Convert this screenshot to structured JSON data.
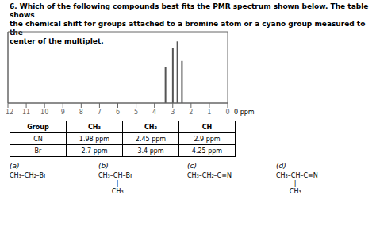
{
  "chart_data": {
    "type": "bar",
    "title": "6. Which of the following compounds best fits the PMR spectrum shown below. The table shows\nthe chemical shift for groups attached to a bromine atom or a cyano group measured to the\ncenter of the multiplet.",
    "x": [
      3.4,
      3.0,
      2.75,
      2.5
    ],
    "values": [
      0.55,
      0.85,
      0.95,
      0.65
    ],
    "color": "#555555",
    "xlim": [
      12,
      0
    ],
    "xticks": [
      0,
      1,
      2,
      3,
      4,
      5,
      6,
      7,
      8,
      9,
      10,
      11,
      12
    ],
    "ylim": [
      0,
      1.1
    ],
    "grid": false,
    "tick_labels": "x",
    "annotations": [
      "0 ppm"
    ],
    "table_headers": [
      "Group",
      "CH₃",
      "CH₂",
      "CH"
    ],
    "table_rows": [
      [
        "CN",
        "1.98 ppm",
        "2.45 ppm",
        "2.9 ppm"
      ],
      [
        "Br",
        "2.7 ppm",
        "3.4 ppm",
        "4.25 ppm"
      ]
    ],
    "options": [
      "(a)",
      "(b)",
      "(c)",
      "(d)"
    ],
    "option_texts": [
      [
        "CH₃–CH₂–Br"
      ],
      [
        "CH₃–CH–Br",
        "|",
        "CH₃"
      ],
      [
        "CH₃–CH₂–C≡N"
      ],
      [
        "CH₃–CH–C≡N",
        "|",
        "CH₃"
      ]
    ]
  }
}
